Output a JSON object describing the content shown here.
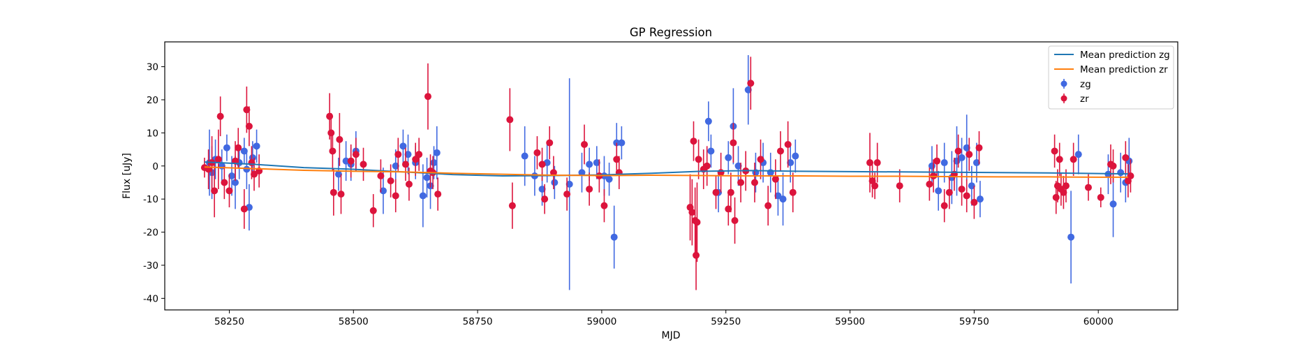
{
  "chart_data": {
    "type": "scatter",
    "title": "GP Regression",
    "xlabel": "MJD",
    "ylabel": "Flux [uJy]",
    "xlim": [
      58120,
      60160
    ],
    "ylim": [
      -43.5,
      37.5
    ],
    "xticks": [
      58250,
      58500,
      58750,
      59000,
      59250,
      59500,
      59750,
      60000
    ],
    "yticks": [
      -40,
      -30,
      -20,
      -10,
      0,
      10,
      20,
      30
    ],
    "grid": false,
    "legend_position": "top-right",
    "legend": [
      {
        "label": "Mean prediction zg",
        "kind": "line",
        "color": "#1f77b4"
      },
      {
        "label": "Mean prediction zr",
        "kind": "line",
        "color": "#ff7f0e"
      },
      {
        "label": "zg",
        "kind": "errorbar",
        "color": "#4169e1"
      },
      {
        "label": "zr",
        "kind": "errorbar",
        "color": "#dc143c"
      }
    ],
    "lines": [
      {
        "name": "Mean prediction zg",
        "color": "#1f77b4",
        "x": [
          58200,
          58300,
          58400,
          58500,
          58600,
          58700,
          58800,
          58900,
          59000,
          59100,
          59200,
          59300,
          59400,
          59500,
          59600,
          59700,
          59800,
          59900,
          60000,
          60060
        ],
        "y": [
          1.2,
          0.5,
          -0.5,
          -1.0,
          -1.8,
          -2.6,
          -3.0,
          -2.9,
          -2.7,
          -2.2,
          -1.6,
          -1.4,
          -1.6,
          -1.7,
          -1.8,
          -1.9,
          -2.0,
          -2.1,
          -2.3,
          -2.4
        ]
      },
      {
        "name": "Mean prediction zr",
        "color": "#ff7f0e",
        "x": [
          58200,
          58300,
          58400,
          58500,
          58600,
          58700,
          58800,
          58900,
          59000,
          59100,
          59200,
          59300,
          59400,
          59500,
          59600,
          59700,
          59800,
          59900,
          60000,
          60060
        ],
        "y": [
          -0.3,
          -0.8,
          -1.3,
          -1.6,
          -1.8,
          -2.2,
          -2.5,
          -2.8,
          -2.9,
          -2.8,
          -2.9,
          -3.0,
          -3.0,
          -3.1,
          -3.1,
          -3.2,
          -3.3,
          -3.3,
          -3.4,
          -3.4
        ]
      }
    ],
    "series": [
      {
        "name": "zg",
        "color": "#4169e1",
        "x": [
          58210,
          58215,
          58222,
          58235,
          58245,
          58255,
          58262,
          58270,
          58280,
          58285,
          58290,
          58297,
          58305,
          58470,
          58485,
          58495,
          58505,
          58560,
          58585,
          58600,
          58610,
          58625,
          58640,
          58648,
          58655,
          58662,
          58668,
          58845,
          58865,
          58880,
          58890,
          58905,
          58935,
          58960,
          58975,
          58990,
          59005,
          59015,
          59025,
          59030,
          59040,
          59215,
          59220,
          59235,
          59255,
          59265,
          59275,
          59295,
          59310,
          59325,
          59340,
          59355,
          59365,
          59380,
          59390,
          59665,
          59678,
          59690,
          59705,
          59715,
          59725,
          59735,
          59745,
          59755,
          59762,
          59945,
          59960,
          60020,
          60030,
          60045,
          60055,
          60062
        ],
        "y": [
          1.0,
          -2.0,
          2.0,
          0.0,
          5.5,
          -3.0,
          -5.0,
          1.0,
          4.5,
          -1.0,
          -12.5,
          2.5,
          6.0,
          -2.5,
          1.5,
          0.5,
          4.5,
          -7.5,
          0.0,
          6.0,
          3.5,
          1.0,
          -9.0,
          -3.5,
          -6.0,
          1.0,
          4.0,
          3.0,
          -3.0,
          -7.0,
          1.0,
          -5.0,
          -5.5,
          -2.0,
          0.5,
          1.0,
          -3.0,
          -4.0,
          -21.5,
          7.0,
          7.0,
          13.5,
          4.5,
          -8.0,
          2.5,
          12.0,
          0.0,
          23.0,
          -2.0,
          1.0,
          -2.0,
          -9.0,
          -10.0,
          1.0,
          3.0,
          0.0,
          -7.5,
          1.0,
          -3.5,
          1.5,
          2.5,
          5.5,
          -6.0,
          1.0,
          -10.0,
          -21.5,
          3.5,
          -2.5,
          -11.5,
          -2.0,
          -5.0,
          1.5
        ],
        "err": [
          10.0,
          8.0,
          6.0,
          5.0,
          4.0,
          6.0,
          8.0,
          5.0,
          4.0,
          6.0,
          7.0,
          5.0,
          5.0,
          5.0,
          6.0,
          5.0,
          6.0,
          7.0,
          5.0,
          5.0,
          6.0,
          5.0,
          9.5,
          6.0,
          7.0,
          5.0,
          8.0,
          9.0,
          6.0,
          5.0,
          6.0,
          5.0,
          32.0,
          6.0,
          5.0,
          5.0,
          6.0,
          5.0,
          9.5,
          6.0,
          5.0,
          6.0,
          5.0,
          6.0,
          5.0,
          11.5,
          6.0,
          10.5,
          6.0,
          6.0,
          6.0,
          6.0,
          8.0,
          6.0,
          5.0,
          6.0,
          6.0,
          6.0,
          8.0,
          10.5,
          6.0,
          10.0,
          6.0,
          6.0,
          5.5,
          14.0,
          6.0,
          6.0,
          10.0,
          6.0,
          6.0,
          7.0
        ]
      },
      {
        "name": "zr",
        "color": "#dc143c",
        "x": [
          58200,
          58208,
          58215,
          58220,
          58228,
          58232,
          58240,
          58250,
          58262,
          58268,
          58280,
          58285,
          58290,
          58295,
          58300,
          58310,
          58452,
          58455,
          58458,
          58460,
          58472,
          58475,
          58495,
          58505,
          58520,
          58540,
          58555,
          58575,
          58585,
          58590,
          58605,
          58612,
          58625,
          58632,
          58650,
          58655,
          58660,
          58670,
          58815,
          58820,
          58870,
          58880,
          58885,
          58895,
          58903,
          58930,
          58965,
          58975,
          58995,
          59005,
          59030,
          59035,
          59178,
          59182,
          59185,
          59188,
          59190,
          59192,
          59195,
          59205,
          59212,
          59230,
          59240,
          59255,
          59260,
          59265,
          59268,
          59280,
          59290,
          59300,
          59308,
          59320,
          59335,
          59350,
          59360,
          59375,
          59385,
          59540,
          59545,
          59550,
          59555,
          59600,
          59660,
          59668,
          59675,
          59690,
          59700,
          59710,
          59718,
          59725,
          59735,
          59740,
          59750,
          59760,
          59912,
          59915,
          59918,
          59922,
          59925,
          59930,
          59935,
          59950,
          59980,
          60005,
          60025,
          60030,
          60055,
          60060,
          60065
        ],
        "y": [
          -0.5,
          -1.0,
          1.0,
          -7.5,
          2.0,
          15.0,
          -5.0,
          -7.5,
          1.5,
          5.5,
          -13.0,
          17.0,
          12.0,
          1.0,
          -2.5,
          -1.5,
          15.0,
          10.0,
          4.5,
          -8.0,
          8.0,
          -8.5,
          1.5,
          3.5,
          0.5,
          -13.5,
          -3.0,
          -4.5,
          -9.0,
          3.5,
          0.5,
          -5.5,
          2.0,
          3.5,
          21.0,
          -1.5,
          -2.0,
          -8.5,
          14.0,
          -12.0,
          4.0,
          0.5,
          -10.0,
          7.0,
          -2.0,
          -8.5,
          6.5,
          -7.0,
          -3.0,
          -12.0,
          2.0,
          -2.0,
          -12.5,
          -14.0,
          7.5,
          -16.5,
          -27.0,
          -17.0,
          2.0,
          -1.0,
          0.0,
          -8.0,
          -2.0,
          -13.0,
          -8.0,
          7.0,
          -16.5,
          -5.0,
          -1.5,
          25.0,
          -5.0,
          2.0,
          -12.0,
          -4.0,
          4.5,
          6.5,
          -8.0,
          1.0,
          -4.5,
          -6.0,
          1.0,
          -6.0,
          -5.5,
          -3.0,
          1.5,
          -12.0,
          -8.0,
          -2.5,
          4.5,
          -7.0,
          -9.0,
          3.5,
          -11.0,
          5.5,
          4.5,
          -9.5,
          -6.0,
          2.0,
          -7.0,
          -8.0,
          -6.0,
          2.0,
          -6.5,
          -9.5,
          0.5,
          0.0,
          2.5,
          -4.5,
          -3.0
        ],
        "err": [
          3.0,
          6.0,
          8.0,
          8.0,
          9.0,
          6.0,
          5.0,
          5.0,
          6.0,
          6.0,
          6.0,
          7.0,
          6.0,
          5.0,
          5.0,
          5.0,
          7.0,
          6.0,
          6.0,
          7.0,
          8.0,
          6.0,
          5.0,
          5.0,
          5.0,
          5.0,
          5.0,
          5.0,
          5.0,
          5.0,
          5.0,
          5.0,
          5.0,
          5.0,
          10.0,
          5.0,
          5.0,
          5.0,
          9.5,
          7.0,
          5.0,
          5.0,
          4.5,
          5.0,
          5.0,
          5.0,
          6.0,
          5.0,
          5.0,
          5.0,
          5.0,
          5.0,
          10.0,
          10.0,
          6.0,
          10.0,
          10.5,
          12.0,
          6.0,
          6.0,
          6.0,
          5.0,
          6.0,
          5.0,
          6.0,
          6.0,
          7.0,
          6.0,
          6.0,
          8.0,
          6.0,
          6.0,
          6.0,
          6.0,
          6.0,
          7.0,
          6.0,
          9.0,
          5.0,
          4.0,
          6.0,
          5.0,
          5.0,
          5.0,
          5.0,
          5.0,
          5.0,
          5.0,
          5.0,
          5.0,
          5.0,
          5.0,
          5.0,
          5.0,
          5.0,
          5.0,
          5.0,
          5.0,
          5.0,
          5.0,
          5.0,
          5.0,
          4.0,
          3.0,
          6.0,
          5.0,
          5.0,
          5.0,
          5.0
        ]
      }
    ]
  }
}
